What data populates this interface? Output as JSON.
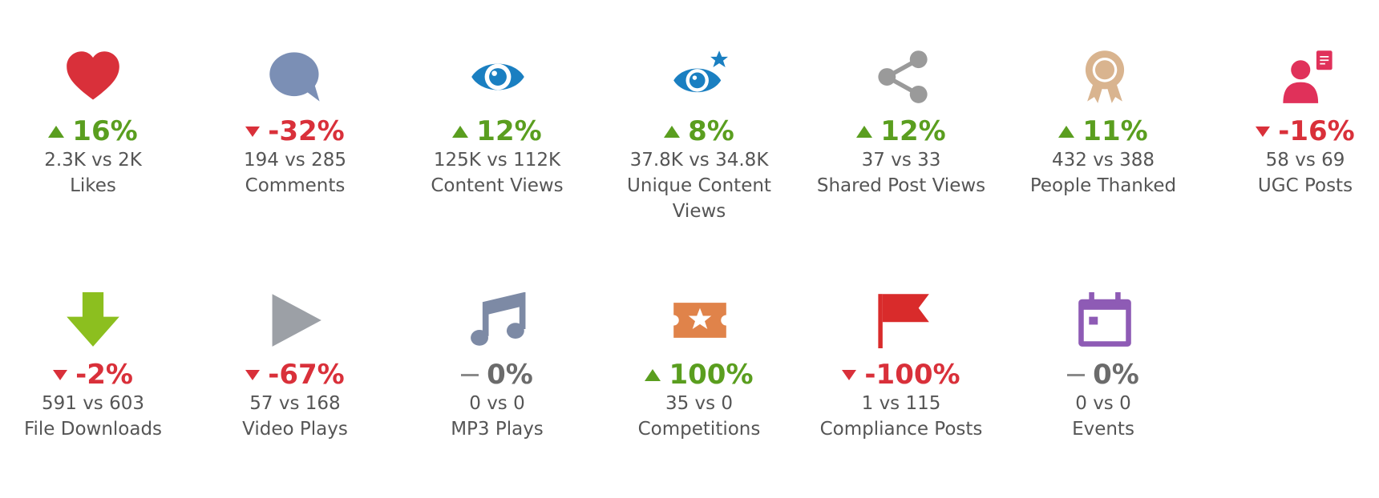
{
  "metrics": [
    {
      "change": "16%",
      "trend": "up",
      "comparison": "2.3K vs 2K",
      "label": "Likes"
    },
    {
      "change": "-32%",
      "trend": "down",
      "comparison": "194 vs 285",
      "label": "Comments"
    },
    {
      "change": "12%",
      "trend": "up",
      "comparison": "125K vs 112K",
      "label": "Content Views"
    },
    {
      "change": "8%",
      "trend": "up",
      "comparison": "37.8K vs 34.8K",
      "label": "Unique Content Views"
    },
    {
      "change": "12%",
      "trend": "up",
      "comparison": "37 vs 33",
      "label": "Shared Post Views"
    },
    {
      "change": "11%",
      "trend": "up",
      "comparison": "432 vs 388",
      "label": "People Thanked"
    },
    {
      "change": "-16%",
      "trend": "down",
      "comparison": "58 vs 69",
      "label": "UGC Posts"
    },
    {
      "change": "-2%",
      "trend": "down",
      "comparison": "591 vs 603",
      "label": "File Downloads"
    },
    {
      "change": "-67%",
      "trend": "down",
      "comparison": "57 vs 168",
      "label": "Video Plays"
    },
    {
      "change": "0%",
      "trend": "flat",
      "comparison": "0 vs 0",
      "label": "MP3 Plays"
    },
    {
      "change": "100%",
      "trend": "up",
      "comparison": "35 vs 0",
      "label": "Competitions"
    },
    {
      "change": "-100%",
      "trend": "down",
      "comparison": "1 vs 115",
      "label": "Compliance Posts"
    },
    {
      "change": "0%",
      "trend": "flat",
      "comparison": "0 vs 0",
      "label": "Events"
    }
  ]
}
